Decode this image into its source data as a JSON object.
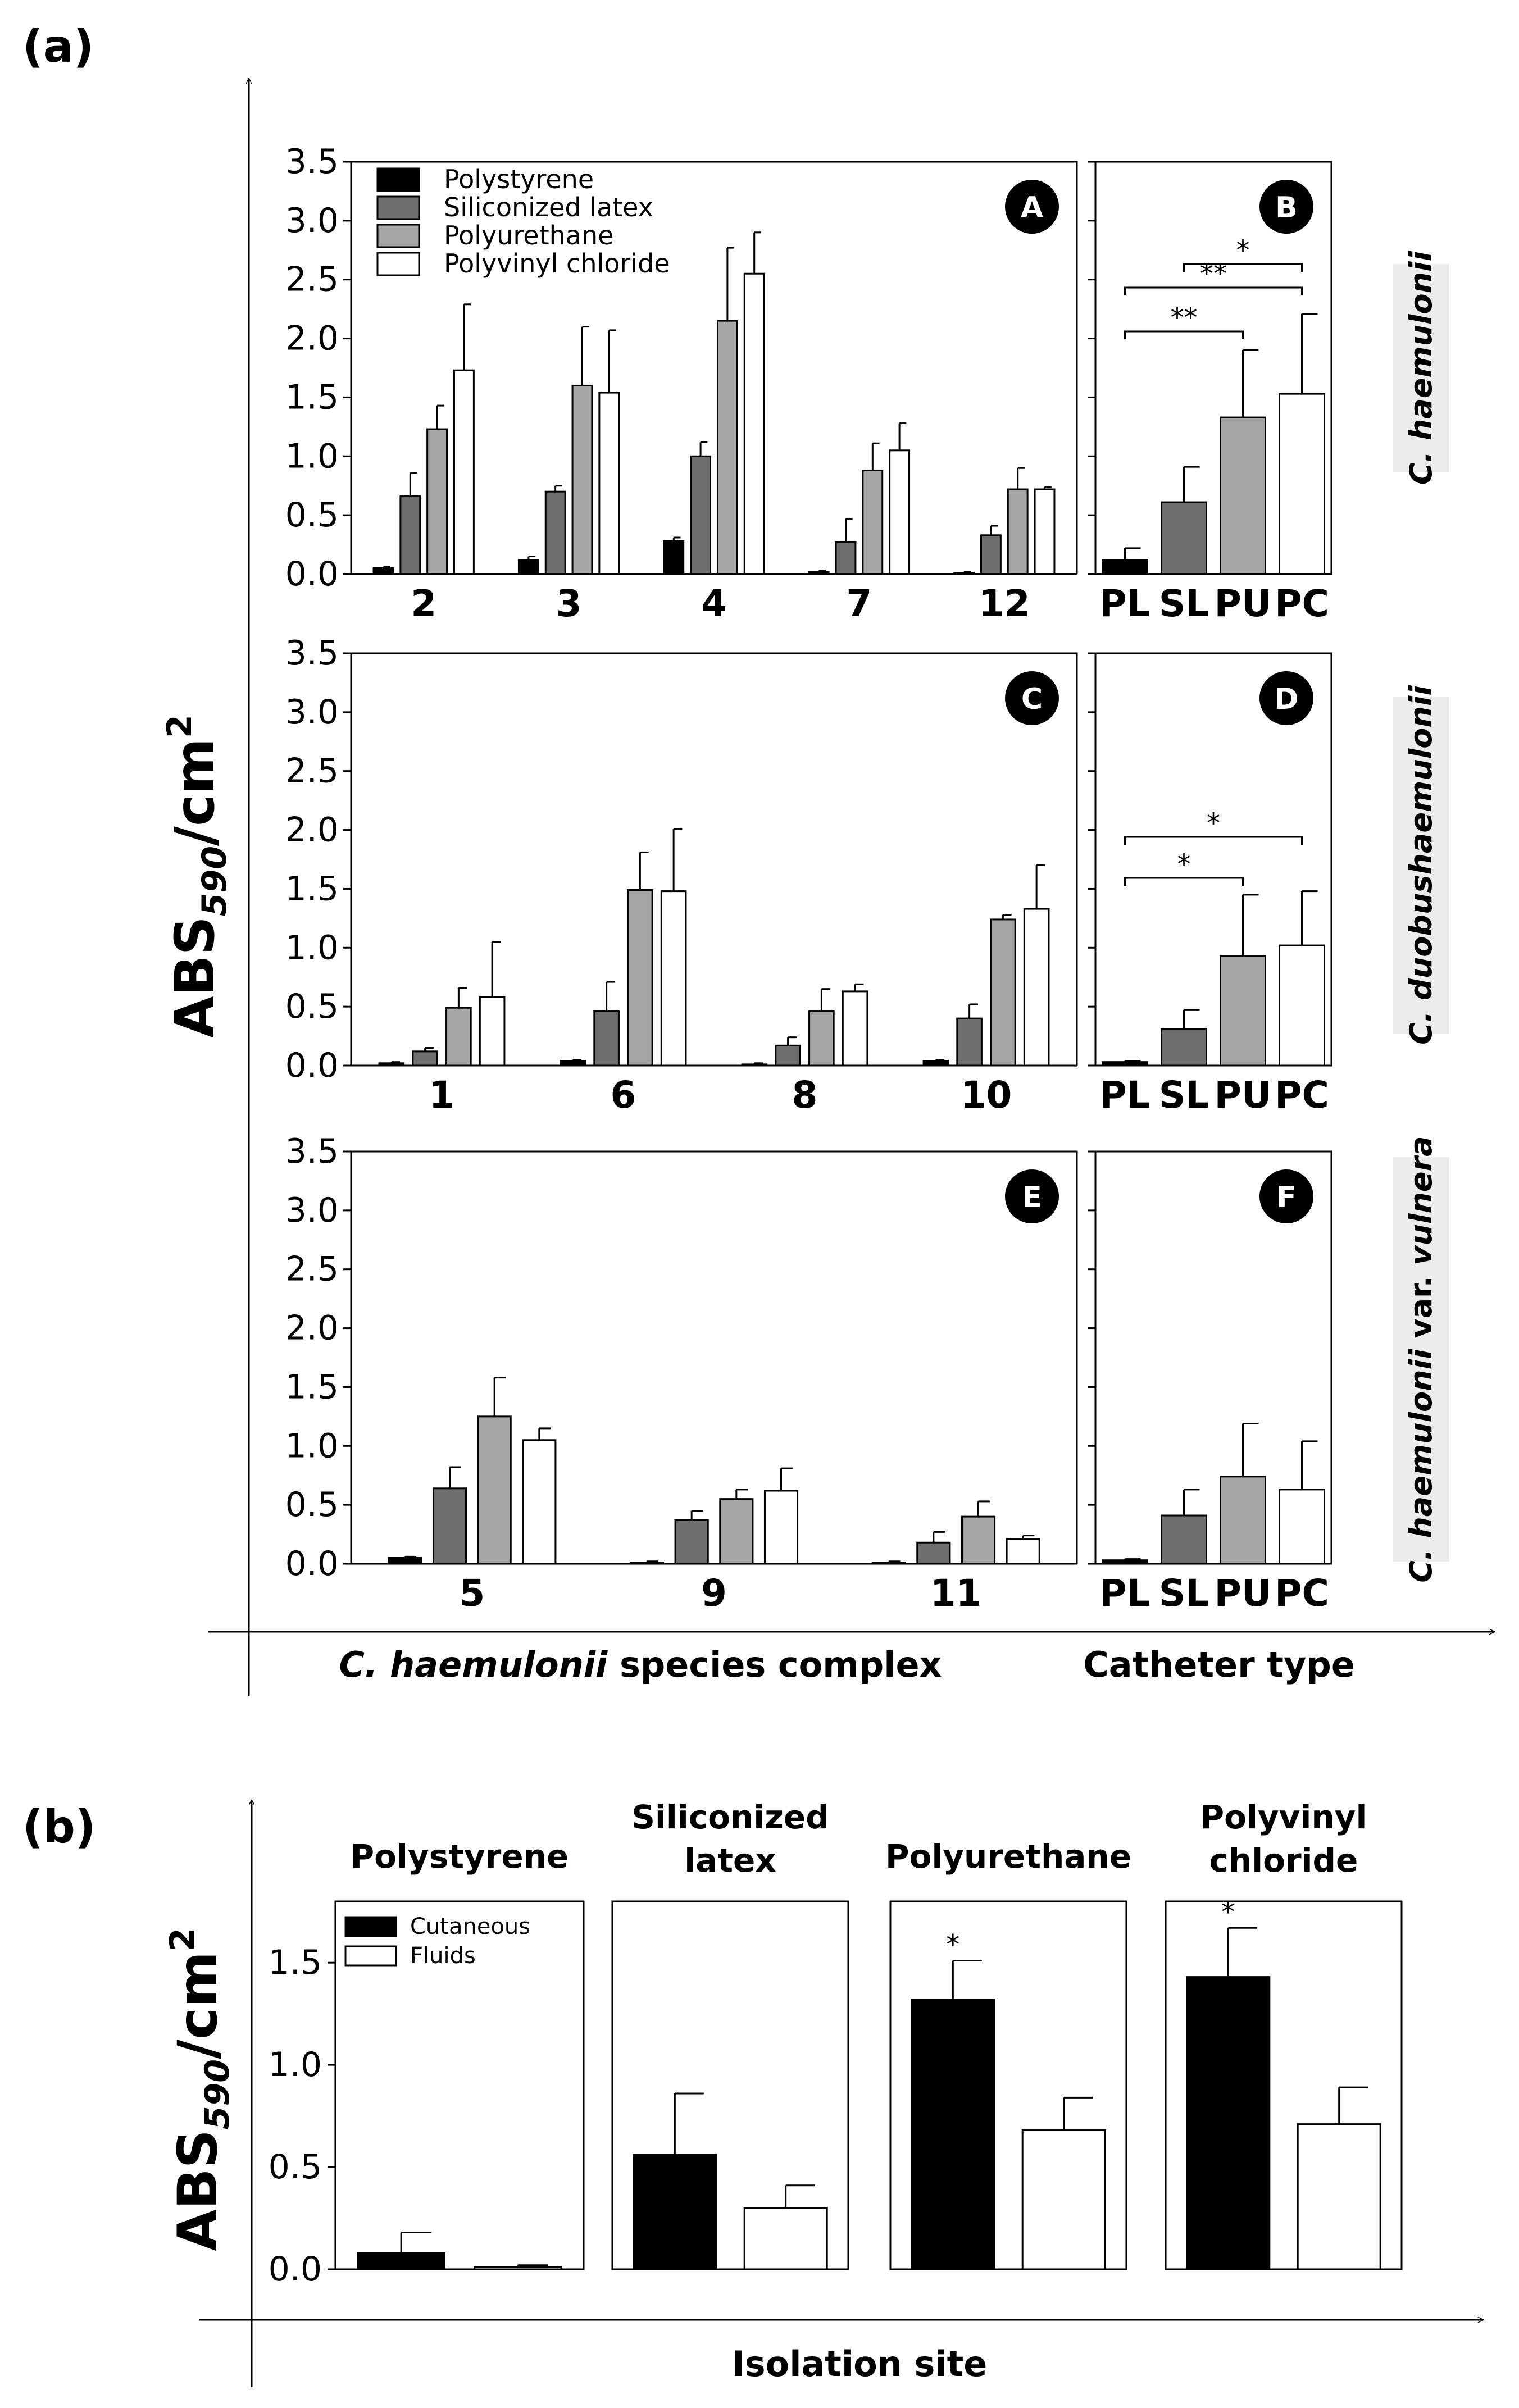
{
  "figure": {
    "part_a_label": "(a)",
    "part_b_label": "(b)",
    "ylabel_main": "ABS",
    "ylabel_sub": "590",
    "ylabel_unit": "/cm",
    "ylabel_sup": "2"
  },
  "colors": {
    "Polystyrene": "#000000",
    "Siliconized latex": "#6e6e6e",
    "Polyurethane": "#a6a6a6",
    "Polyvinyl chloride": "#ffffff",
    "Cutaneous": "#000000",
    "Fluids": "#ffffff"
  },
  "part_a": {
    "legend": [
      "Polystyrene",
      "Siliconized latex",
      "Polyurethane",
      "Polyvinyl chloride"
    ],
    "xlabel_left_italic": "C. haemulonii",
    "xlabel_left_rest": " species complex",
    "xlabel_right": "Catheter type"
  },
  "chart_data": [
    {
      "panel": "A",
      "type": "bar",
      "categories": [
        "2",
        "3",
        "4",
        "7",
        "12"
      ],
      "ylim": [
        0,
        3.5
      ],
      "yticks": [
        "0.0",
        "0.5",
        "1.0",
        "1.5",
        "2.0",
        "2.5",
        "3.0",
        "3.5"
      ],
      "series": [
        {
          "name": "Polystyrene",
          "values": [
            0.05,
            0.12,
            0.28,
            0.02,
            0.01
          ],
          "errors": [
            0.01,
            0.03,
            0.03,
            0.01,
            0.01
          ]
        },
        {
          "name": "Siliconized latex",
          "values": [
            0.66,
            0.7,
            1.0,
            0.27,
            0.33
          ],
          "errors": [
            0.2,
            0.05,
            0.12,
            0.2,
            0.08
          ]
        },
        {
          "name": "Polyurethane",
          "values": [
            1.23,
            1.6,
            2.15,
            0.88,
            0.72
          ],
          "errors": [
            0.2,
            0.5,
            0.62,
            0.23,
            0.18
          ]
        },
        {
          "name": "Polyvinyl chloride",
          "values": [
            1.73,
            1.54,
            2.55,
            1.05,
            0.72
          ],
          "errors": [
            0.56,
            0.53,
            0.35,
            0.23,
            0.02
          ]
        }
      ]
    },
    {
      "panel": "B",
      "type": "bar",
      "categories": [
        "PL",
        "SL",
        "PU",
        "PC"
      ],
      "ylim": [
        0,
        3.5
      ],
      "values": [
        0.12,
        0.61,
        1.33,
        1.53
      ],
      "errors": [
        0.1,
        0.3,
        0.57,
        0.68
      ],
      "significance": [
        {
          "from": 0,
          "to": 2,
          "label": "**"
        },
        {
          "from": 0,
          "to": 3,
          "label": "**"
        },
        {
          "from": 1,
          "to": 3,
          "label": "*"
        }
      ],
      "species_label": "C. haemulonii"
    },
    {
      "panel": "C",
      "type": "bar",
      "categories": [
        "1",
        "6",
        "8",
        "10"
      ],
      "ylim": [
        0,
        3.5
      ],
      "yticks": [
        "0.0",
        "0.5",
        "1.0",
        "1.5",
        "2.0",
        "2.5",
        "3.0",
        "3.5"
      ],
      "series": [
        {
          "name": "Polystyrene",
          "values": [
            0.02,
            0.04,
            0.01,
            0.04
          ],
          "errors": [
            0.01,
            0.01,
            0.01,
            0.01
          ]
        },
        {
          "name": "Siliconized latex",
          "values": [
            0.12,
            0.46,
            0.17,
            0.4
          ],
          "errors": [
            0.03,
            0.25,
            0.07,
            0.12
          ]
        },
        {
          "name": "Polyurethane",
          "values": [
            0.49,
            1.49,
            0.46,
            1.24
          ],
          "errors": [
            0.17,
            0.32,
            0.19,
            0.04
          ]
        },
        {
          "name": "Polyvinyl chloride",
          "values": [
            0.58,
            1.48,
            0.63,
            1.33
          ],
          "errors": [
            0.47,
            0.53,
            0.06,
            0.37
          ]
        }
      ]
    },
    {
      "panel": "D",
      "type": "bar",
      "categories": [
        "PL",
        "SL",
        "PU",
        "PC"
      ],
      "ylim": [
        0,
        3.5
      ],
      "values": [
        0.03,
        0.31,
        0.93,
        1.02
      ],
      "errors": [
        0.01,
        0.16,
        0.52,
        0.46
      ],
      "significance": [
        {
          "from": 0,
          "to": 2,
          "label": "*"
        },
        {
          "from": 0,
          "to": 3,
          "label": "*"
        }
      ],
      "species_label": "C. duobushaemulonii"
    },
    {
      "panel": "E",
      "type": "bar",
      "categories": [
        "5",
        "9",
        "11"
      ],
      "ylim": [
        0,
        3.5
      ],
      "yticks": [
        "0.0",
        "0.5",
        "1.0",
        "1.5",
        "2.0",
        "2.5",
        "3.0",
        "3.5"
      ],
      "series": [
        {
          "name": "Polystyrene",
          "values": [
            0.05,
            0.01,
            0.01
          ],
          "errors": [
            0.01,
            0.01,
            0.01
          ]
        },
        {
          "name": "Siliconized latex",
          "values": [
            0.64,
            0.37,
            0.18
          ],
          "errors": [
            0.18,
            0.08,
            0.09
          ]
        },
        {
          "name": "Polyurethane",
          "values": [
            1.25,
            0.55,
            0.4
          ],
          "errors": [
            0.33,
            0.08,
            0.13
          ]
        },
        {
          "name": "Polyvinyl chloride",
          "values": [
            1.05,
            0.62,
            0.21
          ],
          "errors": [
            0.1,
            0.19,
            0.03
          ]
        }
      ]
    },
    {
      "panel": "F",
      "type": "bar",
      "categories": [
        "PL",
        "SL",
        "PU",
        "PC"
      ],
      "ylim": [
        0,
        3.5
      ],
      "values": [
        0.03,
        0.41,
        0.74,
        0.63
      ],
      "errors": [
        0.01,
        0.22,
        0.45,
        0.41
      ],
      "species_label_italic": "C. haemulonii",
      "species_label_rest": " var. ",
      "species_label_italic2": "vulnera"
    },
    {
      "panel": "b",
      "type": "bar",
      "xlabel": "Isolation site",
      "ylim": [
        0,
        1.8
      ],
      "yticks": [
        "0.0",
        "0.5",
        "1.0",
        "1.5"
      ],
      "legend": [
        "Cutaneous",
        "Fluids"
      ],
      "groups": [
        {
          "title_line1": "Polystyrene",
          "title_line2": "",
          "values": [
            0.08,
            0.01
          ],
          "errors": [
            0.1,
            0.01
          ],
          "significance": ""
        },
        {
          "title_line1": "Siliconized",
          "title_line2": "latex",
          "values": [
            0.56,
            0.3
          ],
          "errors": [
            0.3,
            0.11
          ],
          "significance": ""
        },
        {
          "title_line1": "Polyurethane",
          "title_line2": "",
          "values": [
            1.32,
            0.68
          ],
          "errors": [
            0.19,
            0.16
          ],
          "significance": "*"
        },
        {
          "title_line1": "Polyvinyl",
          "title_line2": "chloride",
          "values": [
            1.43,
            0.71
          ],
          "errors": [
            0.24,
            0.18
          ],
          "significance": "*"
        }
      ]
    }
  ]
}
